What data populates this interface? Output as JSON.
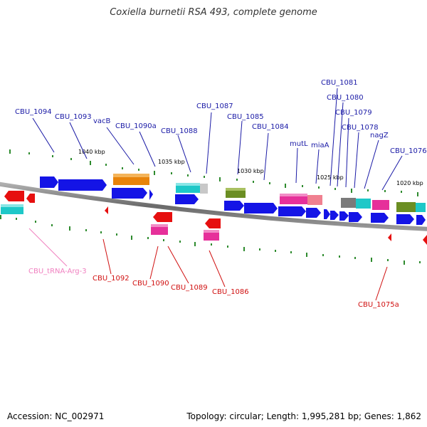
{
  "title": "Coxiella burnetii RSA 493, complete genome",
  "footer": {
    "accession": "Accession: NC_002971",
    "summary": "Topology: circular; Length: 1,995,281 bp; Genes: 1,862"
  },
  "scale_labels": [
    "1040 kbp",
    "1035 kbp",
    "1030 kbp",
    "1025 kbp",
    "1020 kbp"
  ],
  "colors": {
    "forward_label": "#1a1aa6",
    "reverse_label": "#d01010",
    "trna_label": "#f080c0",
    "backbone": "#808080",
    "tick": "#228b22"
  },
  "forward_labels": [
    "CBU_1094",
    "CBU_1093",
    "vacB",
    "CBU_1090a",
    "CBU_1088",
    "CBU_1087",
    "CBU_1085",
    "CBU_1084",
    "mutL",
    "miaA",
    "CBU_1081",
    "CBU_1080",
    "CBU_1079",
    "CBU_1078",
    "nagZ",
    "CBU_1076"
  ],
  "reverse_labels": [
    "CBU_tRNA-Arg-3",
    "CBU_1092",
    "CBU_1090",
    "CBU_1089",
    "CBU_1086",
    "CBU_1075a"
  ]
}
